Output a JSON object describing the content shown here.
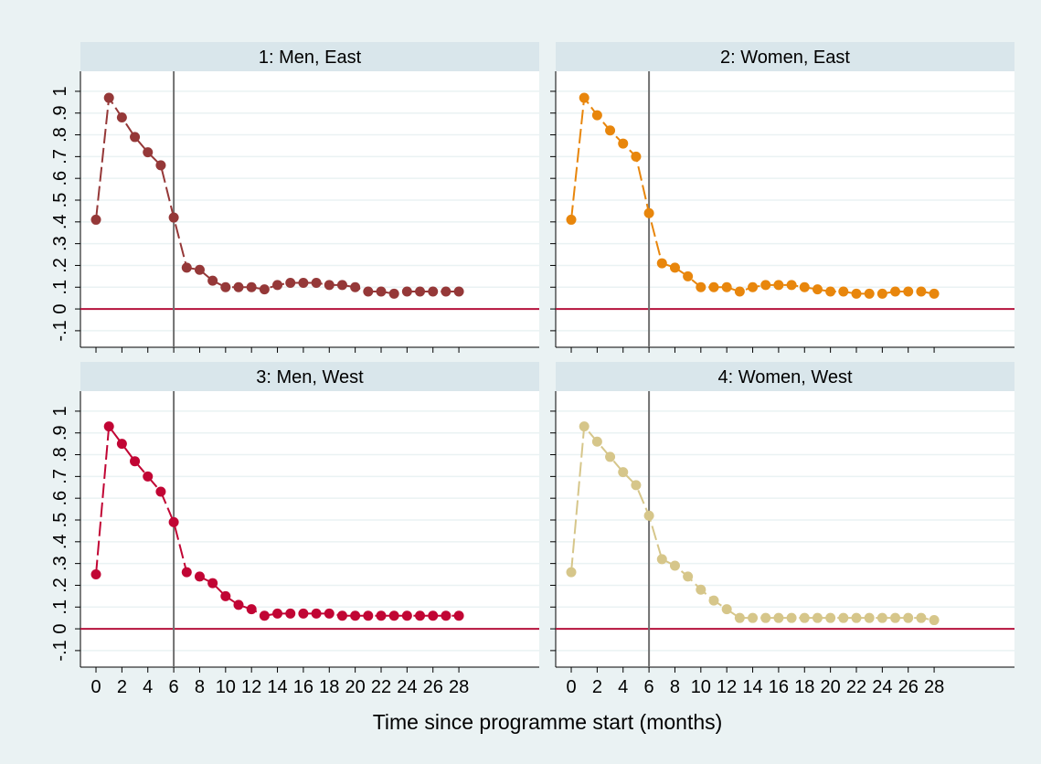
{
  "xlabel": "Time since programme start (months)",
  "chart_data": [
    {
      "type": "line",
      "title": "1: Men, East",
      "color": "#953838",
      "show_xtick_labels": false,
      "show_ytick_labels": true,
      "x": [
        0,
        1,
        2,
        3,
        4,
        5,
        6,
        7,
        8,
        9,
        10,
        11,
        12,
        13,
        14,
        15,
        16,
        17,
        18,
        19,
        20,
        21,
        22,
        23,
        24,
        25,
        26,
        27,
        28
      ],
      "values": [
        0.41,
        0.97,
        0.88,
        0.79,
        0.72,
        0.66,
        0.42,
        0.19,
        0.18,
        0.13,
        0.1,
        0.1,
        0.1,
        0.09,
        0.11,
        0.12,
        0.12,
        0.12,
        0.11,
        0.11,
        0.1,
        0.08,
        0.08,
        0.07,
        0.08,
        0.08,
        0.08,
        0.08,
        0.08
      ],
      "xlim": [
        -1.2,
        34.2
      ],
      "ylim": [
        -0.176,
        1.092
      ],
      "xticks": [
        0,
        2,
        4,
        6,
        8,
        10,
        12,
        14,
        16,
        18,
        20,
        22,
        24,
        26,
        28
      ],
      "yticks": [
        {
          "value": -0.1,
          "label": "-.1"
        },
        0,
        {
          "value": 0.1,
          "label": ".1"
        },
        {
          "value": 0.2,
          "label": ".2"
        },
        {
          "value": 0.3,
          "label": ".3"
        },
        {
          "value": 0.4,
          "label": ".4"
        },
        {
          "value": 0.5,
          "label": ".5"
        },
        {
          "value": 0.6,
          "label": ".6"
        },
        {
          "value": 0.7,
          "label": ".7"
        },
        {
          "value": 0.8,
          "label": ".8"
        },
        {
          "value": 0.9,
          "label": ".9"
        },
        1
      ],
      "hline": 0,
      "hline_color": "#b5123c",
      "vline": 6,
      "vline_color": "#707070",
      "grid": true
    },
    {
      "type": "line",
      "title": "2: Women, East",
      "color": "#e8860c",
      "show_xtick_labels": false,
      "show_ytick_labels": false,
      "x": [
        0,
        1,
        2,
        3,
        4,
        5,
        6,
        7,
        8,
        9,
        10,
        11,
        12,
        13,
        14,
        15,
        16,
        17,
        18,
        19,
        20,
        21,
        22,
        23,
        24,
        25,
        26,
        27,
        28
      ],
      "values": [
        0.41,
        0.97,
        0.89,
        0.82,
        0.76,
        0.7,
        0.44,
        0.21,
        0.19,
        0.15,
        0.1,
        0.1,
        0.1,
        0.08,
        0.1,
        0.11,
        0.11,
        0.11,
        0.1,
        0.09,
        0.08,
        0.08,
        0.07,
        0.07,
        0.07,
        0.08,
        0.08,
        0.08,
        0.07
      ],
      "xlim": [
        -1.2,
        34.2
      ],
      "ylim": [
        -0.176,
        1.092
      ],
      "xticks": [
        0,
        2,
        4,
        6,
        8,
        10,
        12,
        14,
        16,
        18,
        20,
        22,
        24,
        26,
        28
      ],
      "yticks": [
        -0.1,
        0,
        0.1,
        0.2,
        0.3,
        0.4,
        0.5,
        0.6,
        0.7,
        0.8,
        0.9,
        1
      ],
      "hline": 0,
      "hline_color": "#b5123c",
      "vline": 6,
      "vline_color": "#707070",
      "grid": true
    },
    {
      "type": "line",
      "title": "3: Men, West",
      "color": "#c10534",
      "show_xtick_labels": true,
      "show_ytick_labels": true,
      "x": [
        0,
        1,
        2,
        3,
        4,
        5,
        6,
        7,
        8,
        9,
        10,
        11,
        12,
        13,
        14,
        15,
        16,
        17,
        18,
        19,
        20,
        21,
        22,
        23,
        24,
        25,
        26,
        27,
        28
      ],
      "values": [
        0.25,
        0.93,
        0.85,
        0.77,
        0.7,
        0.63,
        0.49,
        0.26,
        0.24,
        0.21,
        0.15,
        0.11,
        0.09,
        0.06,
        0.07,
        0.07,
        0.07,
        0.07,
        0.07,
        0.06,
        0.06,
        0.06,
        0.06,
        0.06,
        0.06,
        0.06,
        0.06,
        0.06,
        0.06
      ],
      "xlim": [
        -1.2,
        34.2
      ],
      "ylim": [
        -0.176,
        1.092
      ],
      "xticks": [
        0,
        2,
        4,
        6,
        8,
        10,
        12,
        14,
        16,
        18,
        20,
        22,
        24,
        26,
        28
      ],
      "yticks": [
        {
          "value": -0.1,
          "label": "-.1"
        },
        0,
        {
          "value": 0.1,
          "label": ".1"
        },
        {
          "value": 0.2,
          "label": ".2"
        },
        {
          "value": 0.3,
          "label": ".3"
        },
        {
          "value": 0.4,
          "label": ".4"
        },
        {
          "value": 0.5,
          "label": ".5"
        },
        {
          "value": 0.6,
          "label": ".6"
        },
        {
          "value": 0.7,
          "label": ".7"
        },
        {
          "value": 0.8,
          "label": ".8"
        },
        {
          "value": 0.9,
          "label": ".9"
        },
        1
      ],
      "hline": 0,
      "hline_color": "#b5123c",
      "vline": 6,
      "vline_color": "#707070",
      "grid": true
    },
    {
      "type": "line",
      "title": "4: Women, West",
      "color": "#d6c68a",
      "show_xtick_labels": true,
      "show_ytick_labels": false,
      "x": [
        0,
        1,
        2,
        3,
        4,
        5,
        6,
        7,
        8,
        9,
        10,
        11,
        12,
        13,
        14,
        15,
        16,
        17,
        18,
        19,
        20,
        21,
        22,
        23,
        24,
        25,
        26,
        27,
        28
      ],
      "values": [
        0.26,
        0.93,
        0.86,
        0.79,
        0.72,
        0.66,
        0.52,
        0.32,
        0.29,
        0.24,
        0.18,
        0.13,
        0.09,
        0.05,
        0.05,
        0.05,
        0.05,
        0.05,
        0.05,
        0.05,
        0.05,
        0.05,
        0.05,
        0.05,
        0.05,
        0.05,
        0.05,
        0.05,
        0.04
      ],
      "xlim": [
        -1.2,
        34.2
      ],
      "ylim": [
        -0.176,
        1.092
      ],
      "xticks": [
        0,
        2,
        4,
        6,
        8,
        10,
        12,
        14,
        16,
        18,
        20,
        22,
        24,
        26,
        28
      ],
      "yticks": [
        -0.1,
        0,
        0.1,
        0.2,
        0.3,
        0.4,
        0.5,
        0.6,
        0.7,
        0.8,
        0.9,
        1
      ],
      "hline": 0,
      "hline_color": "#b5123c",
      "vline": 6,
      "vline_color": "#707070",
      "grid": true
    }
  ]
}
